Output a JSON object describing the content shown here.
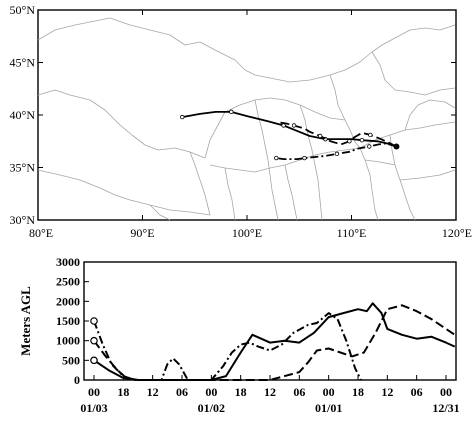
{
  "map": {
    "lon_range": [
      80,
      120
    ],
    "lat_range": [
      30,
      50
    ],
    "lon_labels": [
      "80°E",
      "90°E",
      "100°E",
      "110°E",
      "120°E"
    ],
    "lat_labels": [
      "30°N",
      "35°N",
      "40°N",
      "45°N",
      "50°N"
    ],
    "lon_ticks": [
      80,
      90,
      100,
      110,
      120
    ],
    "lat_ticks": [
      30,
      35,
      40,
      45,
      50
    ],
    "border_color": "#a6a6a6",
    "start_point": {
      "lon": 114.3,
      "lat": 37.0
    },
    "trajectories": [
      {
        "style": "solid",
        "points": [
          [
            114.3,
            37.0
          ],
          [
            113.4,
            37.3
          ],
          [
            112.5,
            37.5
          ],
          [
            111.0,
            37.6
          ],
          [
            110.0,
            37.7
          ],
          [
            108.5,
            37.7
          ],
          [
            107.5,
            37.7
          ],
          [
            106.0,
            38.0
          ],
          [
            105.0,
            38.4
          ],
          [
            103.5,
            39.0
          ],
          [
            102.0,
            39.4
          ],
          [
            100.0,
            39.9
          ],
          [
            98.5,
            40.3
          ],
          [
            97.0,
            40.3
          ],
          [
            95.5,
            40.1
          ],
          [
            93.8,
            39.8
          ]
        ]
      },
      {
        "style": "dashed",
        "points": [
          [
            114.3,
            37.0
          ],
          [
            113.5,
            37.4
          ],
          [
            112.8,
            37.7
          ],
          [
            111.8,
            38.1
          ],
          [
            111.0,
            38.3
          ],
          [
            110.3,
            37.9
          ],
          [
            109.8,
            37.5
          ],
          [
            109.0,
            37.2
          ],
          [
            108.0,
            37.5
          ],
          [
            107.0,
            38.0
          ],
          [
            106.0,
            38.4
          ],
          [
            105.5,
            38.7
          ],
          [
            104.5,
            39.0
          ],
          [
            103.7,
            39.2
          ],
          [
            103.0,
            39.3
          ]
        ]
      },
      {
        "style": "dashdot",
        "points": [
          [
            114.3,
            37.0
          ],
          [
            113.3,
            37.3
          ],
          [
            112.6,
            37.2
          ],
          [
            111.7,
            37.0
          ],
          [
            110.6,
            36.8
          ],
          [
            109.8,
            36.5
          ],
          [
            108.6,
            36.3
          ],
          [
            107.5,
            36.1
          ],
          [
            106.5,
            36.0
          ],
          [
            105.5,
            35.9
          ],
          [
            104.8,
            35.8
          ],
          [
            103.5,
            35.8
          ],
          [
            102.8,
            35.9
          ]
        ]
      }
    ]
  },
  "height_chart": {
    "ylabel": "Meters AGL",
    "y_range": [
      0,
      3000
    ],
    "y_ticks": [
      0,
      500,
      1000,
      1500,
      2000,
      2500,
      3000
    ],
    "y_tick_labels": [
      "0",
      "500",
      "1000",
      "1500",
      "2000",
      "2500",
      "3000"
    ],
    "hour_labels": [
      "00",
      "18",
      "12",
      "06",
      "00",
      "18",
      "12",
      "06",
      "00",
      "18",
      "12",
      "06",
      "00"
    ],
    "date_labels": [
      {
        "text": "01/03",
        "index": 0
      },
      {
        "text": "01/02",
        "index": 4
      },
      {
        "text": "01/01",
        "index": 8
      },
      {
        "text": "12/31",
        "index": 12
      }
    ],
    "series": [
      {
        "style": "solid",
        "start_height": 500,
        "points": [
          [
            0,
            500
          ],
          [
            0.5,
            250
          ],
          [
            1,
            50
          ],
          [
            1.5,
            0
          ],
          [
            2,
            0
          ],
          [
            3,
            0
          ],
          [
            4,
            0
          ],
          [
            4.5,
            100
          ],
          [
            5,
            700
          ],
          [
            5.4,
            1150
          ],
          [
            5.7,
            1050
          ],
          [
            6,
            950
          ],
          [
            6.5,
            1000
          ],
          [
            7,
            950
          ],
          [
            7.5,
            1200
          ],
          [
            8,
            1600
          ],
          [
            8.5,
            1700
          ],
          [
            9,
            1800
          ],
          [
            9.3,
            1750
          ],
          [
            9.5,
            1950
          ],
          [
            9.8,
            1700
          ],
          [
            10,
            1300
          ],
          [
            10.5,
            1150
          ],
          [
            11,
            1050
          ],
          [
            11.5,
            1100
          ],
          [
            12,
            950
          ],
          [
            12.3,
            850
          ]
        ]
      },
      {
        "style": "dashed",
        "start_height": 1000,
        "points": [
          [
            0,
            1000
          ],
          [
            0.4,
            600
          ],
          [
            0.8,
            250
          ],
          [
            1.1,
            50
          ],
          [
            1.5,
            0
          ],
          [
            2,
            0
          ],
          [
            3,
            0
          ],
          [
            5,
            0
          ],
          [
            6,
            0
          ],
          [
            7,
            200
          ],
          [
            7.3,
            450
          ],
          [
            7.6,
            750
          ],
          [
            8,
            800
          ],
          [
            8.4,
            700
          ],
          [
            8.8,
            600
          ],
          [
            9.2,
            700
          ],
          [
            9.6,
            1200
          ],
          [
            10,
            1800
          ],
          [
            10.5,
            1900
          ],
          [
            11,
            1750
          ],
          [
            11.5,
            1550
          ],
          [
            12,
            1300
          ],
          [
            12.3,
            1150
          ]
        ]
      },
      {
        "style": "dashdot",
        "start_height": 1500,
        "points": [
          [
            0,
            1500
          ],
          [
            0.3,
            900
          ],
          [
            0.6,
            400
          ],
          [
            1,
            100
          ],
          [
            1.4,
            0
          ],
          [
            1.8,
            0
          ],
          [
            2.3,
            0
          ],
          [
            2.5,
            400
          ],
          [
            2.7,
            550
          ],
          [
            2.9,
            400
          ],
          [
            3.2,
            0
          ],
          [
            3.7,
            0
          ],
          [
            4,
            0
          ],
          [
            4.4,
            350
          ],
          [
            4.7,
            700
          ],
          [
            5,
            900
          ],
          [
            5.3,
            950
          ],
          [
            5.6,
            850
          ],
          [
            6,
            750
          ],
          [
            6.4,
            900
          ],
          [
            6.8,
            1200
          ],
          [
            7.3,
            1400
          ],
          [
            7.6,
            1450
          ],
          [
            8,
            1700
          ],
          [
            8.3,
            1550
          ],
          [
            8.6,
            1000
          ],
          [
            8.9,
            300
          ],
          [
            9.1,
            0
          ]
        ]
      }
    ]
  },
  "colors": {
    "line": "#000000",
    "border": "#a6a6a6",
    "background": "#ffffff"
  }
}
